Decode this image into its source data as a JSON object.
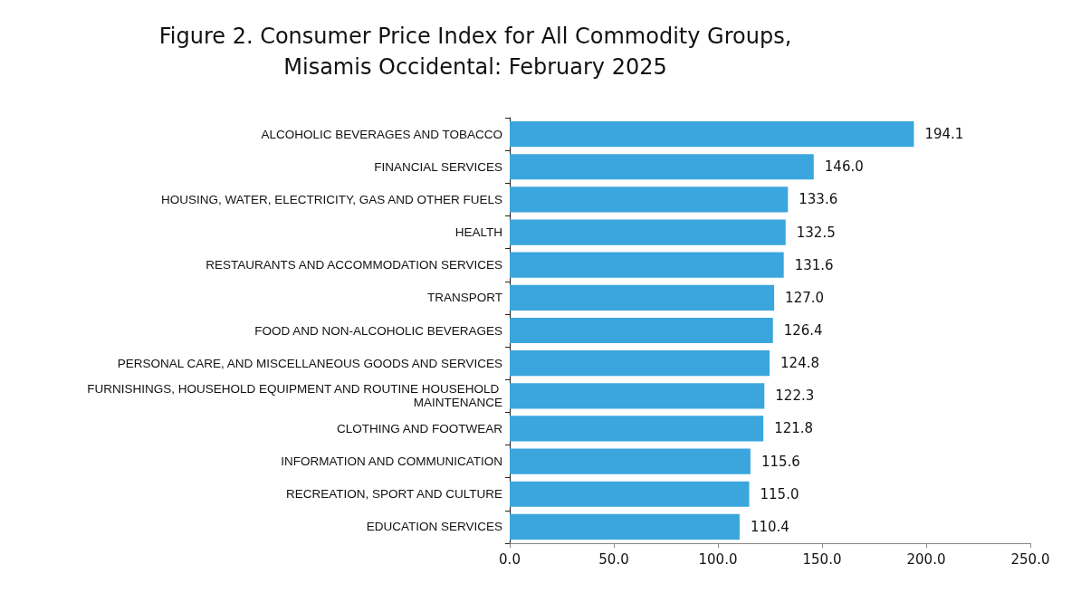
{
  "chart_data": {
    "type": "bar",
    "orientation": "horizontal",
    "title": "Figure 2. Consumer Price Index for All Commodity Groups,\nMisamis Occidental: February 2025",
    "categories": [
      "ALCOHOLIC BEVERAGES AND TOBACCO",
      "FINANCIAL SERVICES",
      "HOUSING, WATER, ELECTRICITY, GAS AND OTHER FUELS",
      "HEALTH",
      "RESTAURANTS AND ACCOMMODATION SERVICES",
      "TRANSPORT",
      "FOOD AND NON-ALCOHOLIC BEVERAGES",
      "PERSONAL CARE, AND MISCELLANEOUS GOODS AND SERVICES",
      "FURNISHINGS, HOUSEHOLD EQUIPMENT AND ROUTINE HOUSEHOLD MAINTENANCE",
      "CLOTHING AND FOOTWEAR",
      "INFORMATION AND COMMUNICATION",
      "RECREATION, SPORT AND CULTURE",
      "EDUCATION SERVICES"
    ],
    "values": [
      194.1,
      146.0,
      133.6,
      132.5,
      131.6,
      127.0,
      126.4,
      124.8,
      122.3,
      121.8,
      115.6,
      115.0,
      110.4
    ],
    "value_labels": [
      "194.1",
      "146.0",
      "133.6",
      "132.5",
      "131.6",
      "127.0",
      "126.4",
      "124.8",
      "122.3",
      "121.8",
      "115.6",
      "115.0",
      "110.4"
    ],
    "color": "#3aa6dd",
    "xlim": [
      0,
      250
    ],
    "xticks": [
      {
        "value": 0,
        "label": "0.0"
      },
      {
        "value": 50,
        "label": "50.0"
      },
      {
        "value": 100,
        "label": "100.0"
      },
      {
        "value": 150,
        "label": "150.0"
      },
      {
        "value": 200,
        "label": "200.0"
      },
      {
        "value": 250,
        "label": "250.0"
      }
    ],
    "grid": false
  }
}
